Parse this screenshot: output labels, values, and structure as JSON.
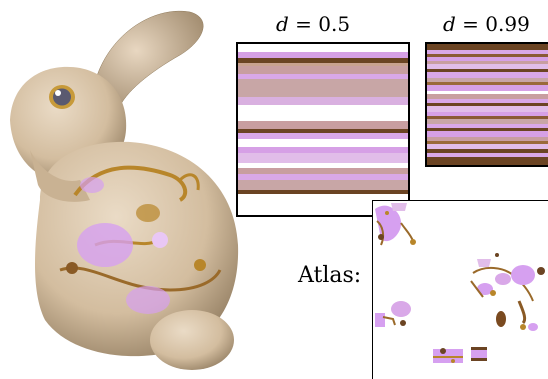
{
  "labels": {
    "d_left": {
      "var": "d",
      "op": " = ",
      "value": "0.5"
    },
    "d_right": {
      "var": "d",
      "op": " = ",
      "value": "0.99"
    },
    "atlas": "Atlas:"
  },
  "colors": {
    "bunny_skin": "#d8c3a8",
    "bunny_shadow": "#9e8769",
    "stripe_brown": "#6b4423",
    "stripe_lilac": "#d9a8e8",
    "stripe_pink": "#c89ea0",
    "stripe_white": "#ffffff",
    "ornament_gold": "#b8862a",
    "ornament_violet": "#d6a0f0"
  }
}
